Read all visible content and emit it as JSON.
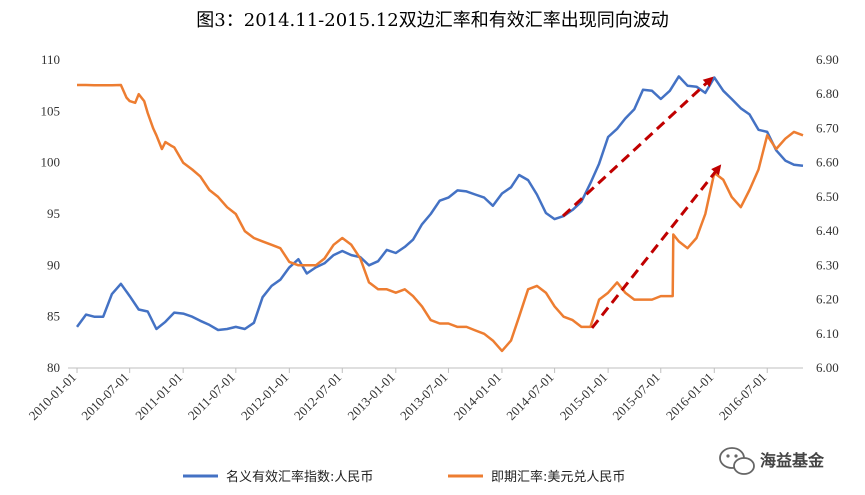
{
  "chart_data": {
    "type": "line",
    "title": "图3：2014.11-2015.12双边汇率和有效汇率出现同向波动",
    "x_ticks": [
      "2010-01-01",
      "2010-07-01",
      "2011-01-01",
      "2011-07-01",
      "2012-01-01",
      "2012-07-01",
      "2013-01-01",
      "2013-07-01",
      "2014-01-01",
      "2014-07-01",
      "2015-01-01",
      "2015-07-01",
      "2016-01-01",
      "2016-07-01"
    ],
    "xlim": [
      "2009-12-01",
      "2016-11-01"
    ],
    "y_left": {
      "ticks": [
        "80",
        "85",
        "90",
        "95",
        "100",
        "105",
        "110"
      ],
      "lim": [
        80,
        110
      ]
    },
    "y_right": {
      "ticks": [
        "6.00",
        "6.10",
        "6.20",
        "6.30",
        "6.40",
        "6.50",
        "6.60",
        "6.70",
        "6.80",
        "6.90"
      ],
      "lim": [
        6.0,
        6.9
      ]
    },
    "grid": false,
    "legend_position": "bottom",
    "series": [
      {
        "name": "名义有效汇率指数:人民币",
        "axis": "left",
        "color": "#4472C4",
        "points": [
          [
            "2010-01-01",
            84.0
          ],
          [
            "2010-02-01",
            85.2
          ],
          [
            "2010-03-01",
            85.0
          ],
          [
            "2010-04-01",
            85.0
          ],
          [
            "2010-05-01",
            87.2
          ],
          [
            "2010-06-01",
            88.2
          ],
          [
            "2010-07-01",
            87.0
          ],
          [
            "2010-08-01",
            85.7
          ],
          [
            "2010-09-01",
            85.5
          ],
          [
            "2010-10-01",
            83.8
          ],
          [
            "2010-11-01",
            84.5
          ],
          [
            "2010-12-01",
            85.4
          ],
          [
            "2011-01-01",
            85.3
          ],
          [
            "2011-02-01",
            85.0
          ],
          [
            "2011-03-01",
            84.6
          ],
          [
            "2011-04-01",
            84.2
          ],
          [
            "2011-05-01",
            83.7
          ],
          [
            "2011-06-01",
            83.8
          ],
          [
            "2011-07-01",
            84.0
          ],
          [
            "2011-08-01",
            83.8
          ],
          [
            "2011-09-01",
            84.4
          ],
          [
            "2011-10-01",
            86.9
          ],
          [
            "2011-11-01",
            88.0
          ],
          [
            "2011-12-01",
            88.6
          ],
          [
            "2012-01-01",
            89.8
          ],
          [
            "2012-02-01",
            90.6
          ],
          [
            "2012-03-01",
            89.2
          ],
          [
            "2012-04-01",
            89.8
          ],
          [
            "2012-05-01",
            90.2
          ],
          [
            "2012-06-01",
            91.0
          ],
          [
            "2012-07-01",
            91.4
          ],
          [
            "2012-08-01",
            91.0
          ],
          [
            "2012-09-01",
            90.8
          ],
          [
            "2012-10-01",
            90.0
          ],
          [
            "2012-11-01",
            90.4
          ],
          [
            "2012-12-01",
            91.5
          ],
          [
            "2013-01-01",
            91.2
          ],
          [
            "2013-02-01",
            91.8
          ],
          [
            "2013-03-01",
            92.5
          ],
          [
            "2013-04-01",
            94.0
          ],
          [
            "2013-05-01",
            95.0
          ],
          [
            "2013-06-01",
            96.3
          ],
          [
            "2013-07-01",
            96.6
          ],
          [
            "2013-08-01",
            97.3
          ],
          [
            "2013-09-01",
            97.2
          ],
          [
            "2013-10-01",
            96.9
          ],
          [
            "2013-11-01",
            96.6
          ],
          [
            "2013-12-01",
            95.8
          ],
          [
            "2014-01-01",
            97.0
          ],
          [
            "2014-02-01",
            97.6
          ],
          [
            "2014-03-01",
            98.8
          ],
          [
            "2014-04-01",
            98.3
          ],
          [
            "2014-05-01",
            96.9
          ],
          [
            "2014-06-01",
            95.1
          ],
          [
            "2014-07-01",
            94.5
          ],
          [
            "2014-08-01",
            94.8
          ],
          [
            "2014-09-01",
            95.4
          ],
          [
            "2014-10-01",
            96.2
          ],
          [
            "2014-11-01",
            98.0
          ],
          [
            "2014-12-01",
            99.9
          ],
          [
            "2015-01-01",
            102.5
          ],
          [
            "2015-02-01",
            103.3
          ],
          [
            "2015-03-01",
            104.3
          ],
          [
            "2015-04-01",
            105.2
          ],
          [
            "2015-05-01",
            107.1
          ],
          [
            "2015-06-01",
            107.0
          ],
          [
            "2015-07-01",
            106.2
          ],
          [
            "2015-08-01",
            107.0
          ],
          [
            "2015-09-01",
            108.4
          ],
          [
            "2015-10-01",
            107.5
          ],
          [
            "2015-11-01",
            107.4
          ],
          [
            "2015-12-01",
            106.8
          ],
          [
            "2016-01-01",
            108.3
          ],
          [
            "2016-02-01",
            107.0
          ],
          [
            "2016-03-01",
            106.2
          ],
          [
            "2016-04-01",
            105.3
          ],
          [
            "2016-05-01",
            104.7
          ],
          [
            "2016-06-01",
            103.2
          ],
          [
            "2016-07-01",
            103.0
          ],
          [
            "2016-08-01",
            101.2
          ],
          [
            "2016-09-01",
            100.2
          ],
          [
            "2016-10-01",
            99.8
          ],
          [
            "2016-11-01",
            99.7
          ]
        ]
      },
      {
        "name": "即期汇率:美元兑人民币",
        "axis": "right",
        "color": "#ED7D31",
        "points": [
          [
            "2010-01-01",
            6.827
          ],
          [
            "2010-02-01",
            6.827
          ],
          [
            "2010-03-01",
            6.826
          ],
          [
            "2010-04-01",
            6.826
          ],
          [
            "2010-05-01",
            6.826
          ],
          [
            "2010-06-01",
            6.827
          ],
          [
            "2010-06-20",
            6.79
          ],
          [
            "2010-07-01",
            6.78
          ],
          [
            "2010-07-20",
            6.775
          ],
          [
            "2010-08-01",
            6.8
          ],
          [
            "2010-08-20",
            6.78
          ],
          [
            "2010-09-01",
            6.745
          ],
          [
            "2010-09-20",
            6.7
          ],
          [
            "2010-10-01",
            6.68
          ],
          [
            "2010-10-20",
            6.64
          ],
          [
            "2010-11-01",
            6.66
          ],
          [
            "2010-11-20",
            6.65
          ],
          [
            "2010-12-01",
            6.645
          ],
          [
            "2011-01-01",
            6.6
          ],
          [
            "2011-02-01",
            6.58
          ],
          [
            "2011-03-01",
            6.56
          ],
          [
            "2011-04-01",
            6.52
          ],
          [
            "2011-05-01",
            6.5
          ],
          [
            "2011-06-01",
            6.47
          ],
          [
            "2011-07-01",
            6.45
          ],
          [
            "2011-08-01",
            6.4
          ],
          [
            "2011-09-01",
            6.38
          ],
          [
            "2011-10-01",
            6.37
          ],
          [
            "2011-11-01",
            6.36
          ],
          [
            "2011-12-01",
            6.35
          ],
          [
            "2012-01-01",
            6.31
          ],
          [
            "2012-02-01",
            6.3
          ],
          [
            "2012-03-01",
            6.3
          ],
          [
            "2012-04-01",
            6.3
          ],
          [
            "2012-05-01",
            6.32
          ],
          [
            "2012-06-01",
            6.36
          ],
          [
            "2012-07-01",
            6.38
          ],
          [
            "2012-08-01",
            6.36
          ],
          [
            "2012-09-01",
            6.32
          ],
          [
            "2012-10-01",
            6.25
          ],
          [
            "2012-11-01",
            6.23
          ],
          [
            "2012-12-01",
            6.23
          ],
          [
            "2013-01-01",
            6.22
          ],
          [
            "2013-02-01",
            6.23
          ],
          [
            "2013-03-01",
            6.21
          ],
          [
            "2013-04-01",
            6.18
          ],
          [
            "2013-05-01",
            6.14
          ],
          [
            "2013-06-01",
            6.13
          ],
          [
            "2013-07-01",
            6.13
          ],
          [
            "2013-08-01",
            6.12
          ],
          [
            "2013-09-01",
            6.12
          ],
          [
            "2013-10-01",
            6.11
          ],
          [
            "2013-11-01",
            6.1
          ],
          [
            "2013-12-01",
            6.08
          ],
          [
            "2014-01-01",
            6.05
          ],
          [
            "2014-02-01",
            6.08
          ],
          [
            "2014-03-01",
            6.15
          ],
          [
            "2014-04-01",
            6.23
          ],
          [
            "2014-05-01",
            6.24
          ],
          [
            "2014-06-01",
            6.22
          ],
          [
            "2014-07-01",
            6.18
          ],
          [
            "2014-08-01",
            6.15
          ],
          [
            "2014-09-01",
            6.14
          ],
          [
            "2014-10-01",
            6.12
          ],
          [
            "2014-11-01",
            6.12
          ],
          [
            "2014-12-01",
            6.2
          ],
          [
            "2015-01-01",
            6.22
          ],
          [
            "2015-02-01",
            6.25
          ],
          [
            "2015-03-01",
            6.22
          ],
          [
            "2015-04-01",
            6.2
          ],
          [
            "2015-05-01",
            6.2
          ],
          [
            "2015-06-01",
            6.2
          ],
          [
            "2015-07-01",
            6.21
          ],
          [
            "2015-08-01",
            6.21
          ],
          [
            "2015-08-11",
            6.21
          ],
          [
            "2015-08-13",
            6.39
          ],
          [
            "2015-09-01",
            6.37
          ],
          [
            "2015-10-01",
            6.35
          ],
          [
            "2015-11-01",
            6.38
          ],
          [
            "2015-12-01",
            6.45
          ],
          [
            "2016-01-01",
            6.57
          ],
          [
            "2016-02-01",
            6.55
          ],
          [
            "2016-03-01",
            6.5
          ],
          [
            "2016-04-01",
            6.47
          ],
          [
            "2016-05-01",
            6.52
          ],
          [
            "2016-06-01",
            6.58
          ],
          [
            "2016-07-01",
            6.68
          ],
          [
            "2016-08-01",
            6.64
          ],
          [
            "2016-09-01",
            6.67
          ],
          [
            "2016-10-01",
            6.69
          ],
          [
            "2016-11-01",
            6.68
          ]
        ]
      }
    ]
  },
  "watermark": {
    "text": "海益基金",
    "icon": "wechat-icon"
  }
}
